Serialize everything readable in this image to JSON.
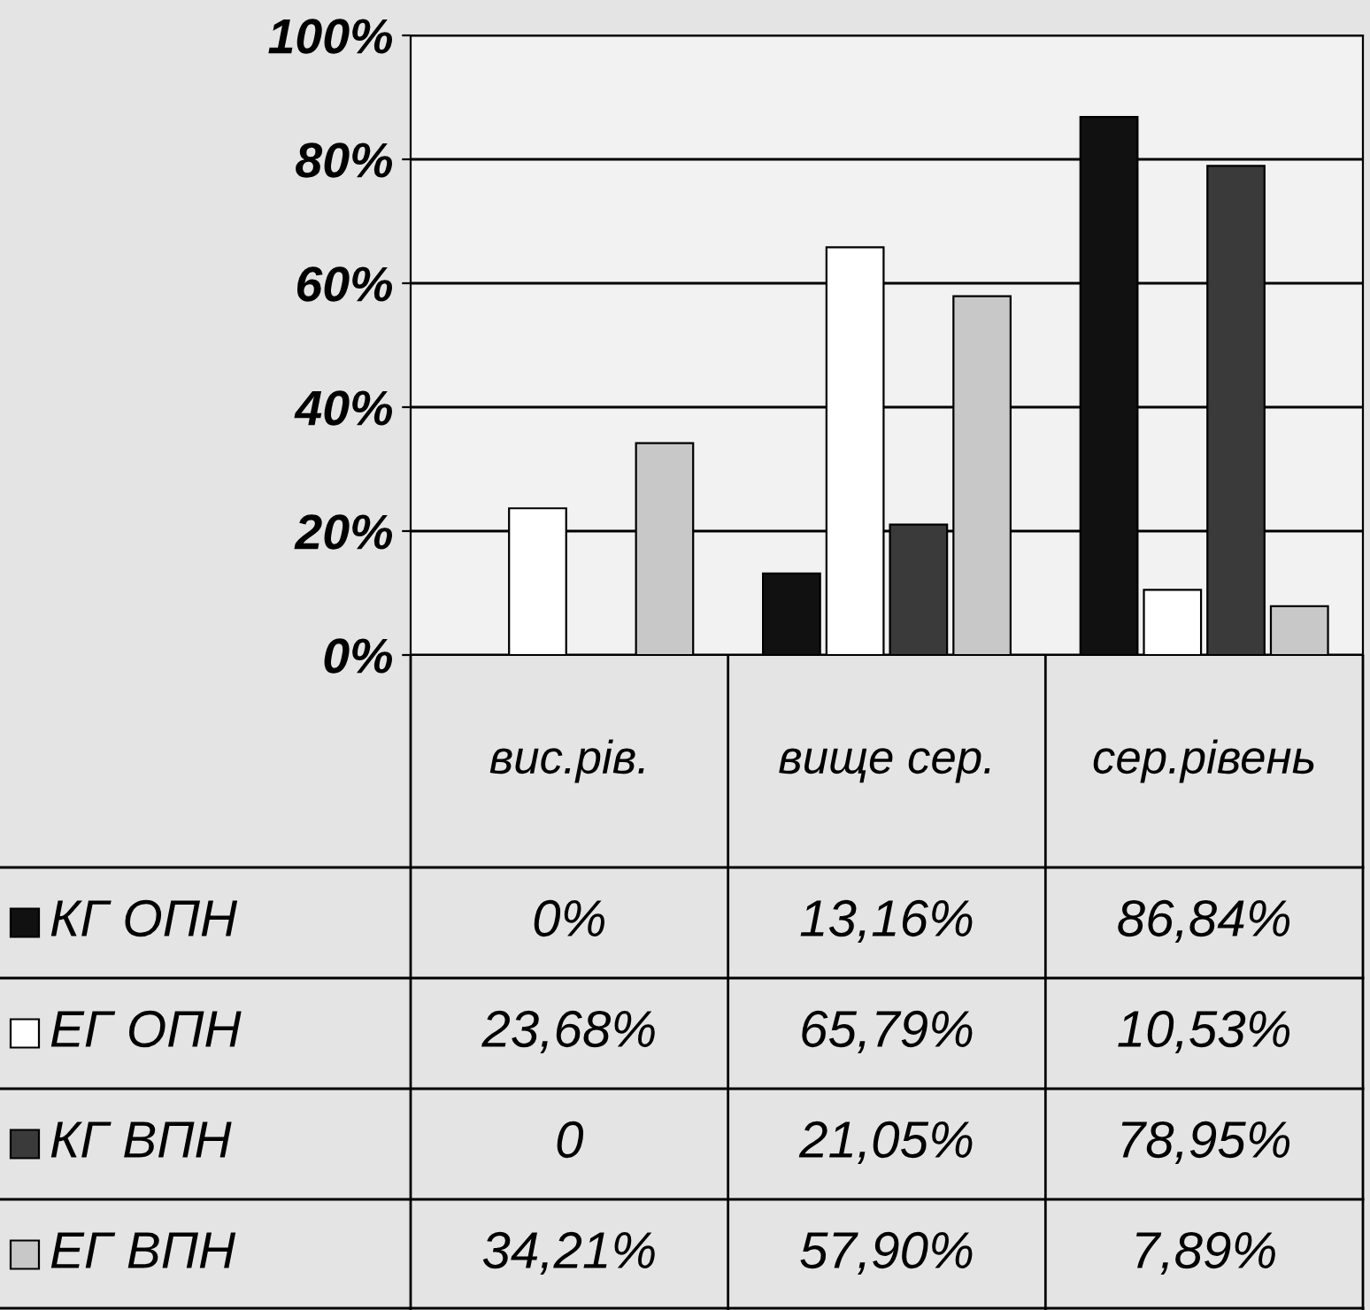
{
  "chart_data": {
    "type": "bar",
    "categories": [
      "вис.рів.",
      "вище сер.",
      "сер.рівень"
    ],
    "series": [
      {
        "name": "КГ ОПН",
        "color": "#111111",
        "values": [
          0,
          13.16,
          86.84
        ],
        "value_labels": [
          "0%",
          "13,16%",
          "86,84%"
        ]
      },
      {
        "name": "ЕГ ОПН",
        "color": "#ffffff",
        "values": [
          23.68,
          65.79,
          10.53
        ],
        "value_labels": [
          "23,68%",
          "65,79%",
          "10,53%"
        ]
      },
      {
        "name": "КГ ВПН",
        "color": "#3a3a3a",
        "values": [
          0,
          21.05,
          78.95
        ],
        "value_labels": [
          "0",
          "21,05%",
          "78,95%"
        ]
      },
      {
        "name": "ЕГ ВПН",
        "color": "#c8c8c8",
        "values": [
          34.21,
          57.9,
          7.89
        ],
        "value_labels": [
          "34,21%",
          "57,90%",
          "7,89%"
        ]
      }
    ],
    "ylim": [
      0,
      100
    ],
    "yticks": [
      {
        "value": 0,
        "label": "0%"
      },
      {
        "value": 20,
        "label": "20%"
      },
      {
        "value": 40,
        "label": "40%"
      },
      {
        "value": 60,
        "label": "60%"
      },
      {
        "value": 80,
        "label": "80%"
      },
      {
        "value": 100,
        "label": "100%"
      }
    ],
    "grid": "y",
    "legend": "bottom left"
  }
}
